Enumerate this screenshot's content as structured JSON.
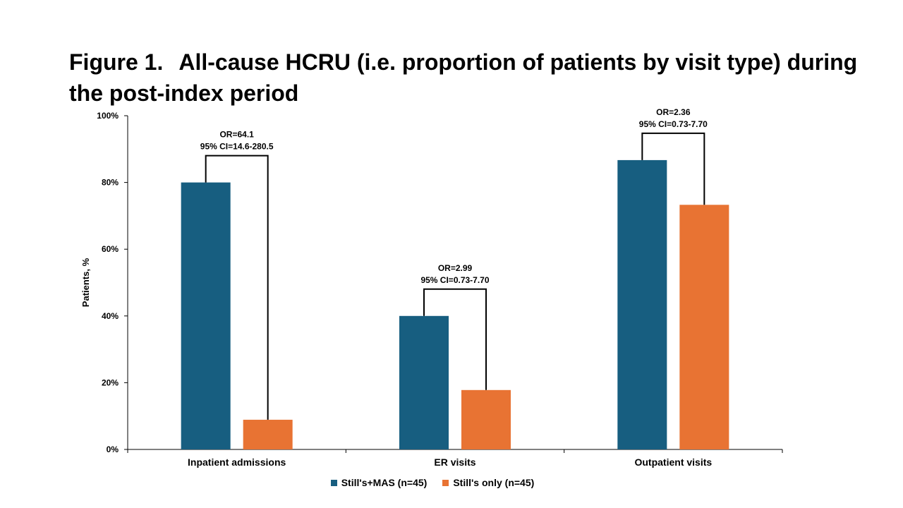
{
  "figure": {
    "number": "Figure 1.",
    "title": "All-cause HCRU (i.e. proportion of patients by visit type) during the post-index period"
  },
  "colors": {
    "mas": "#175e80",
    "stills_only": "#e87333",
    "axis": "#000000"
  },
  "chart_data": {
    "type": "bar",
    "categories": [
      "Inpatient admissions",
      "ER visits",
      "Outpatient visits"
    ],
    "series": [
      {
        "name": "Still's+MAS (n=45)",
        "values": [
          80.0,
          40.0,
          86.7
        ]
      },
      {
        "name": "Still's only (n=45)",
        "values": [
          8.9,
          17.8,
          73.3
        ]
      }
    ],
    "ylabel": "Patients, %",
    "ylim": [
      0,
      100
    ],
    "yticks": [
      "0%",
      "20%",
      "40%",
      "60%",
      "80%",
      "100%"
    ],
    "ytick_values": [
      0,
      20,
      40,
      60,
      80,
      100
    ],
    "grid": false,
    "legend_position": "bottom",
    "annotations": [
      {
        "category": "Inpatient admissions",
        "line1": "OR=64.1",
        "line2": "95% CI=14.6-280.5"
      },
      {
        "category": "ER visits",
        "line1": "OR=2.99",
        "line2": "95% CI=0.73-7.70"
      },
      {
        "category": "Outpatient visits",
        "line1": "OR=2.36",
        "line2": "95% CI=0.73-7.70"
      }
    ]
  }
}
